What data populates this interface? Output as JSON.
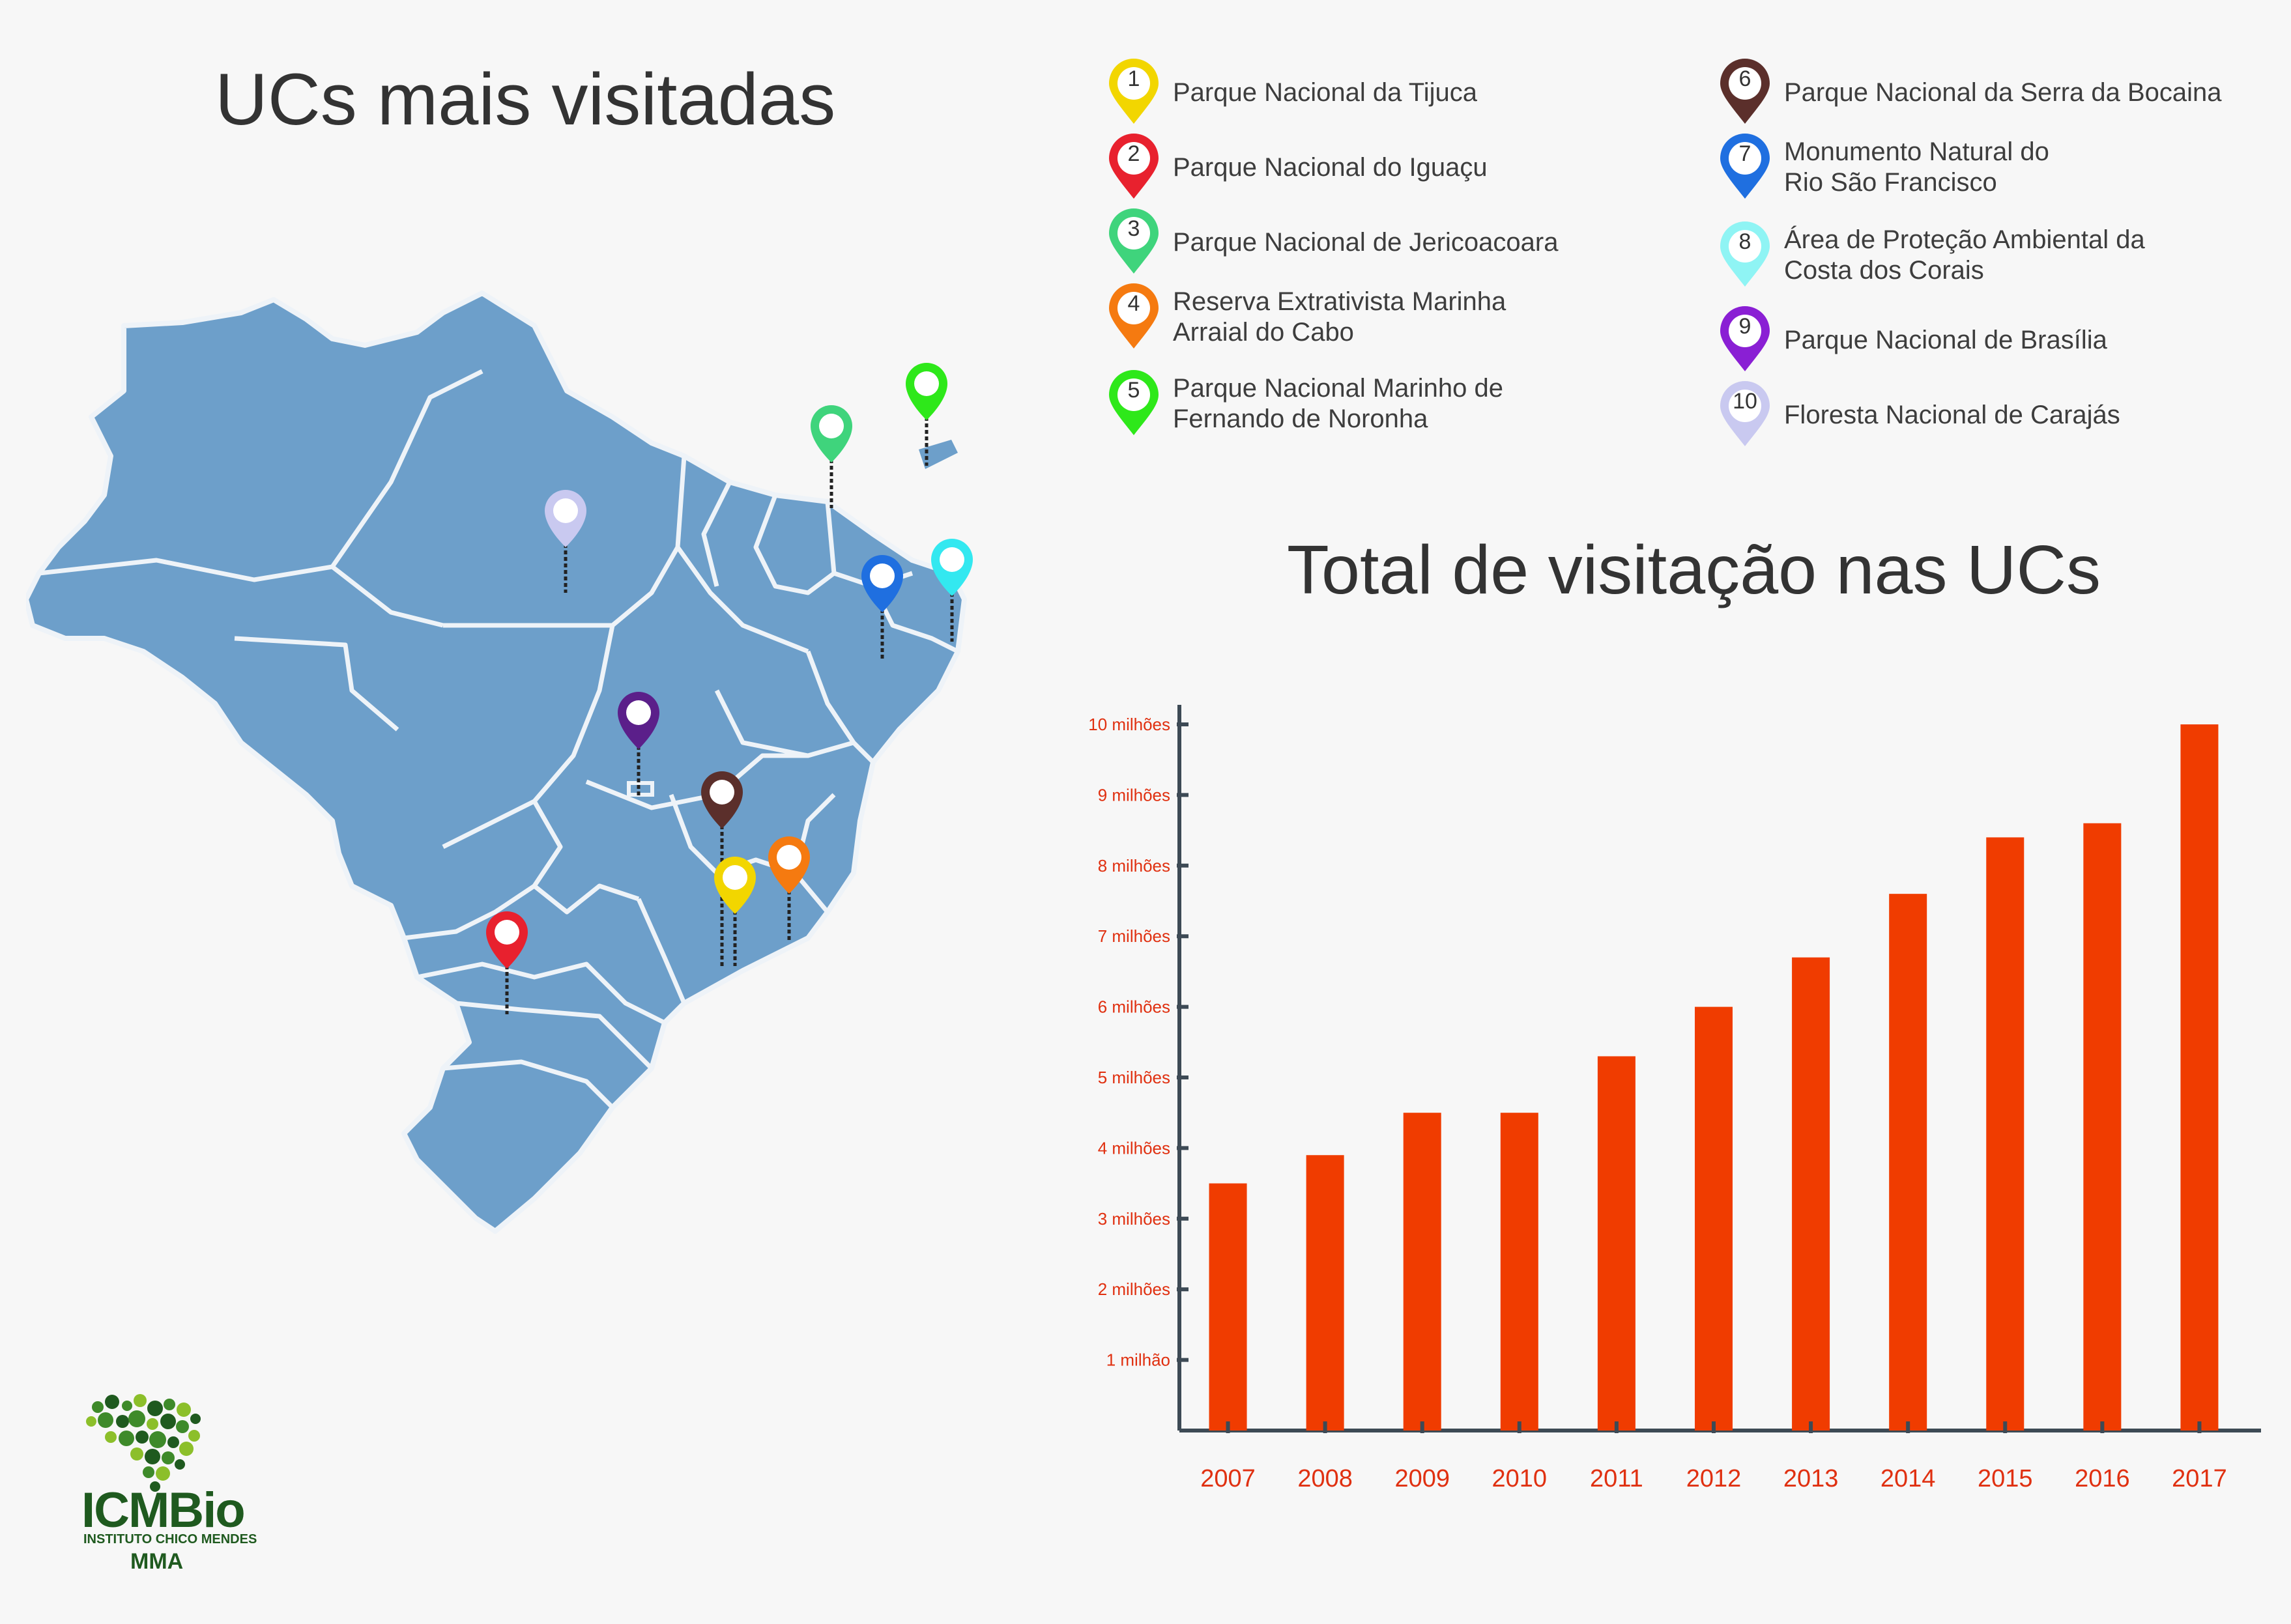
{
  "map": {
    "title": "UCs mais visitadas",
    "legend": [
      {
        "num": "1",
        "label": "Parque Nacional da Tijuca",
        "color": "#f2d600"
      },
      {
        "num": "2",
        "label": "Parque Nacional do Iguaçu",
        "color": "#e8212e"
      },
      {
        "num": "3",
        "label": "Parque Nacional de Jericoacoara",
        "color": "#3fd47c"
      },
      {
        "num": "4",
        "label": "Reserva Extrativista Marinha\nArraial do Cabo",
        "color": "#f57a10"
      },
      {
        "num": "5",
        "label": "Parque Nacional Marinho de\nFernando de Noronha",
        "color": "#2ee81a"
      },
      {
        "num": "6",
        "label": "Parque Nacional da Serra da Bocaina",
        "color": "#5b2f2b"
      },
      {
        "num": "7",
        "label": "Monumento Natural do\nRio São Francisco",
        "color": "#1f6fe0"
      },
      {
        "num": "8",
        "label": "Área de Proteção Ambiental  da\nCosta dos Corais",
        "color": "#8ff4f4"
      },
      {
        "num": "9",
        "label": "Parque Nacional de Brasília",
        "color": "#8a1fd4"
      },
      {
        "num": "10",
        "label": "Floresta Nacional de Carajás",
        "color": "#c9c9f0"
      }
    ]
  },
  "colors": {
    "map_fill": "#6d9fca",
    "bar": "#f03c00",
    "axis": "#3d4a55",
    "tick_label": "#e03010"
  },
  "chart_data": {
    "type": "bar",
    "title": "Total de visitação nas UCs",
    "categories": [
      "2007",
      "2008",
      "2009",
      "2010",
      "2011",
      "2012",
      "2013",
      "2014",
      "2015",
      "2016",
      "2017"
    ],
    "values": [
      3.5,
      3.9,
      4.5,
      4.5,
      5.3,
      6.0,
      6.7,
      7.6,
      8.4,
      8.6,
      10.0
    ],
    "ylim": [
      0,
      10
    ],
    "y_tick_labels": [
      "1 milhão",
      "2 milhões",
      "3 milhões",
      "4 milhões",
      "5 milhões",
      "6 milhões",
      "7 milhões",
      "8 milhões",
      "9 milhões",
      "10 milhões"
    ],
    "grid": false
  },
  "logo": {
    "name": "ICMBio",
    "subtitle": "INSTITUTO CHICO MENDES",
    "ministry": "MMA"
  }
}
